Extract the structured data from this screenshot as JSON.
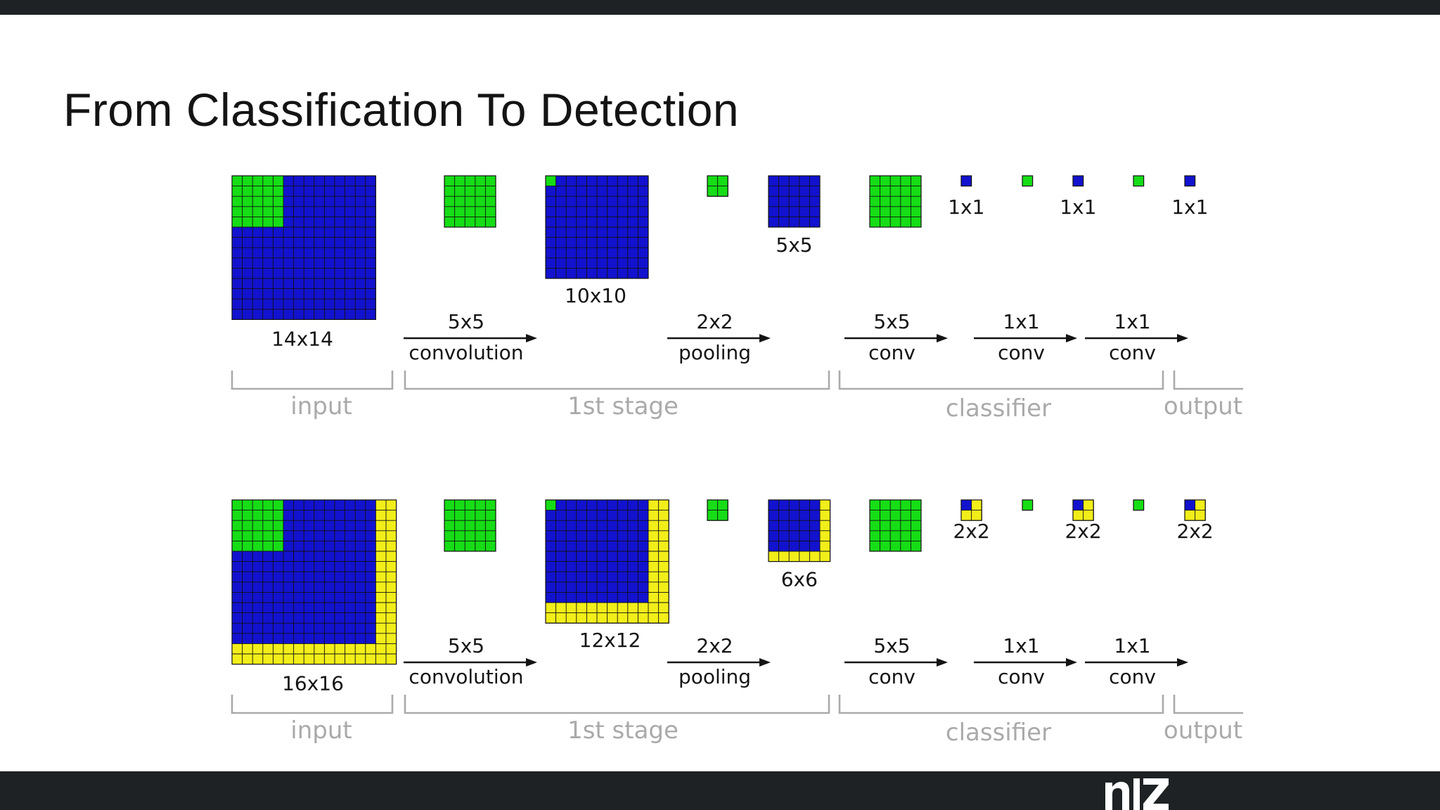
{
  "title": "From Classification To Detection",
  "colors": {
    "filter": "#16dd16",
    "feature": "#1212cf",
    "extra": "#f2ee1a",
    "grid_line": "#111111",
    "label": "#141414",
    "section": "#aaaaaa",
    "bar": "#1e2224"
  },
  "rows": [
    {
      "input": {
        "size_label": "14x14",
        "cells": 14,
        "extra_cells": 0,
        "filter_cells": 5
      },
      "stage1": {
        "filter_cells": 5,
        "output_label": "10x10",
        "output_cells": 10,
        "output_extra": 0
      },
      "pool": {
        "filter_cells": 2,
        "output_label": "5x5",
        "output_cells": 5,
        "output_extra": 0
      },
      "classifier": {
        "filter_cells": 5,
        "outputs": [
          "1x1",
          "1x1",
          "1x1"
        ],
        "output_cells": 1,
        "output_extra": 0
      },
      "ops": [
        {
          "top": "5x5",
          "bottom": "convolution"
        },
        {
          "top": "2x2",
          "bottom": "pooling"
        },
        {
          "top": "5x5",
          "bottom": "conv"
        },
        {
          "top": "1x1",
          "bottom": "conv"
        },
        {
          "top": "1x1",
          "bottom": "conv"
        }
      ],
      "sections": [
        "input",
        "1st stage",
        "classifier",
        "output"
      ]
    },
    {
      "input": {
        "size_label": "16x16",
        "cells": 14,
        "extra_cells": 2,
        "filter_cells": 5
      },
      "stage1": {
        "filter_cells": 5,
        "output_label": "12x12",
        "output_cells": 10,
        "output_extra": 2
      },
      "pool": {
        "filter_cells": 2,
        "output_label": "6x6",
        "output_cells": 5,
        "output_extra": 1
      },
      "classifier": {
        "filter_cells": 5,
        "outputs": [
          "2x2",
          "2x2",
          "2x2"
        ],
        "output_cells": 1,
        "output_extra": 1
      },
      "ops": [
        {
          "top": "5x5",
          "bottom": "convolution"
        },
        {
          "top": "2x2",
          "bottom": "pooling"
        },
        {
          "top": "5x5",
          "bottom": "conv"
        },
        {
          "top": "1x1",
          "bottom": "conv"
        },
        {
          "top": "1x1",
          "bottom": "conv"
        }
      ],
      "sections": [
        "input",
        "1st stage",
        "classifier",
        "output"
      ]
    }
  ]
}
